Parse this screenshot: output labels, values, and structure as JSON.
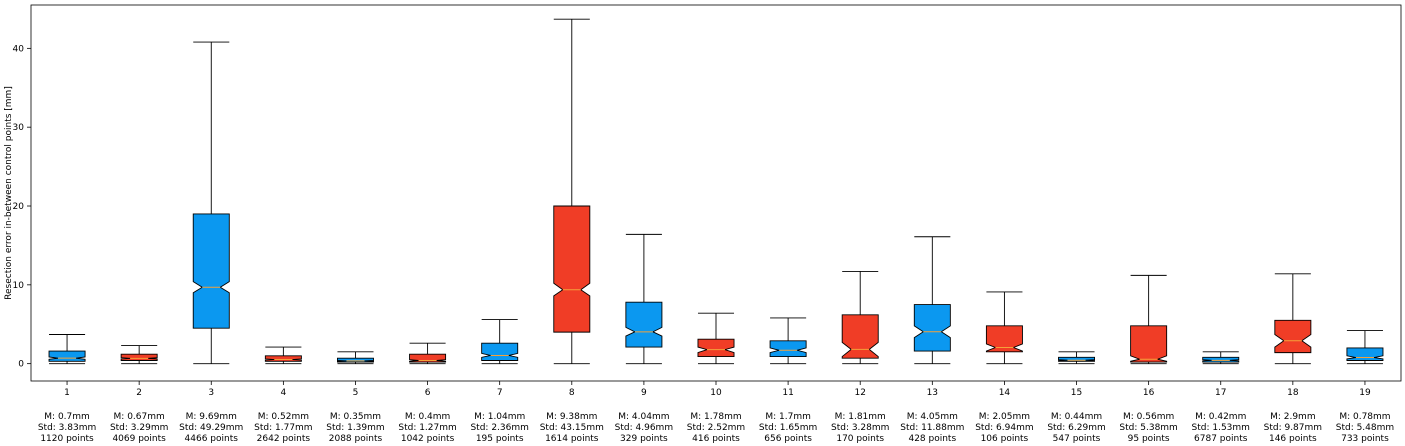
{
  "chart_data": {
    "type": "boxplot",
    "title": "",
    "xlabel": "",
    "ylabel": "Resection error in-between control points [mm]",
    "ylim": [
      -2.2,
      45.5
    ],
    "yticks": [
      0,
      10,
      20,
      30,
      40
    ],
    "grid": false,
    "colors": {
      "blue": "#0b98f0",
      "red": "#f03d26",
      "median": "#f4a13a"
    },
    "boxes": [
      {
        "label": "1",
        "color": "blue",
        "whisker_low": 0.0,
        "q1": 0.3,
        "median": 0.7,
        "q3": 1.6,
        "whisker_high": 3.7,
        "notch_low": 0.55,
        "notch_high": 0.85,
        "stat_mean": "M: 0.7mm",
        "stat_std": "Std: 3.83mm",
        "stat_points": "1120 points"
      },
      {
        "label": "2",
        "color": "red",
        "whisker_low": 0.0,
        "q1": 0.4,
        "median": 0.67,
        "q3": 1.2,
        "whisker_high": 2.3,
        "notch_low": 0.6,
        "notch_high": 0.75,
        "stat_mean": "M: 0.67mm",
        "stat_std": "Std: 3.29mm",
        "stat_points": "4069 points"
      },
      {
        "label": "3",
        "color": "blue",
        "whisker_low": 0.0,
        "q1": 4.5,
        "median": 9.69,
        "q3": 19.0,
        "whisker_high": 40.8,
        "notch_low": 9.0,
        "notch_high": 10.4,
        "stat_mean": "M: 9.69mm",
        "stat_std": "Std: 49.29mm",
        "stat_points": "4466 points"
      },
      {
        "label": "4",
        "color": "red",
        "whisker_low": 0.0,
        "q1": 0.3,
        "median": 0.52,
        "q3": 1.0,
        "whisker_high": 2.1,
        "notch_low": 0.45,
        "notch_high": 0.6,
        "stat_mean": "M: 0.52mm",
        "stat_std": "Std: 1.77mm",
        "stat_points": "2642 points"
      },
      {
        "label": "5",
        "color": "blue",
        "whisker_low": 0.0,
        "q1": 0.2,
        "median": 0.35,
        "q3": 0.7,
        "whisker_high": 1.5,
        "notch_low": 0.3,
        "notch_high": 0.4,
        "stat_mean": "M: 0.35mm",
        "stat_std": "Std: 1.39mm",
        "stat_points": "2088 points"
      },
      {
        "label": "6",
        "color": "red",
        "whisker_low": 0.0,
        "q1": 0.2,
        "median": 0.4,
        "q3": 1.2,
        "whisker_high": 2.6,
        "notch_low": 0.3,
        "notch_high": 0.5,
        "stat_mean": "M: 0.4mm",
        "stat_std": "Std: 1.27mm",
        "stat_points": "1042 points"
      },
      {
        "label": "7",
        "color": "blue",
        "whisker_low": 0.0,
        "q1": 0.4,
        "median": 1.04,
        "q3": 2.6,
        "whisker_high": 5.6,
        "notch_low": 0.8,
        "notch_high": 1.3,
        "stat_mean": "M: 1.04mm",
        "stat_std": "Std: 2.36mm",
        "stat_points": "195 points"
      },
      {
        "label": "8",
        "color": "red",
        "whisker_low": 0.0,
        "q1": 4.0,
        "median": 9.38,
        "q3": 20.0,
        "whisker_high": 43.7,
        "notch_low": 8.6,
        "notch_high": 10.2,
        "stat_mean": "M: 9.38mm",
        "stat_std": "Std: 43.15mm",
        "stat_points": "1614 points"
      },
      {
        "label": "9",
        "color": "blue",
        "whisker_low": 0.0,
        "q1": 2.1,
        "median": 4.04,
        "q3": 7.8,
        "whisker_high": 16.4,
        "notch_low": 3.5,
        "notch_high": 4.6,
        "stat_mean": "M: 4.04mm",
        "stat_std": "Std: 4.96mm",
        "stat_points": "329 points"
      },
      {
        "label": "10",
        "color": "red",
        "whisker_low": 0.0,
        "q1": 0.9,
        "median": 1.78,
        "q3": 3.1,
        "whisker_high": 6.4,
        "notch_low": 1.4,
        "notch_high": 2.1,
        "stat_mean": "M: 1.78mm",
        "stat_std": "Std: 2.52mm",
        "stat_points": "416 points"
      },
      {
        "label": "11",
        "color": "blue",
        "whisker_low": 0.0,
        "q1": 0.9,
        "median": 1.7,
        "q3": 2.9,
        "whisker_high": 5.8,
        "notch_low": 1.4,
        "notch_high": 2.0,
        "stat_mean": "M: 1.7mm",
        "stat_std": "Std: 1.65mm",
        "stat_points": "656 points"
      },
      {
        "label": "12",
        "color": "red",
        "whisker_low": 0.0,
        "q1": 0.7,
        "median": 1.81,
        "q3": 6.2,
        "whisker_high": 11.7,
        "notch_low": 0.9,
        "notch_high": 2.7,
        "stat_mean": "M: 1.81mm",
        "stat_std": "Std: 3.28mm",
        "stat_points": "170 points"
      },
      {
        "label": "13",
        "color": "blue",
        "whisker_low": 0.0,
        "q1": 1.6,
        "median": 4.05,
        "q3": 7.5,
        "whisker_high": 16.1,
        "notch_low": 3.3,
        "notch_high": 4.8,
        "stat_mean": "M: 4.05mm",
        "stat_std": "Std: 11.88mm",
        "stat_points": "428 points"
      },
      {
        "label": "14",
        "color": "red",
        "whisker_low": 0.0,
        "q1": 1.5,
        "median": 2.05,
        "q3": 4.8,
        "whisker_high": 9.1,
        "notch_low": 1.6,
        "notch_high": 2.5,
        "stat_mean": "M: 2.05mm",
        "stat_std": "Std: 6.94mm",
        "stat_points": "106 points"
      },
      {
        "label": "15",
        "color": "blue",
        "whisker_low": 0.0,
        "q1": 0.3,
        "median": 0.44,
        "q3": 0.8,
        "whisker_high": 1.5,
        "notch_low": 0.38,
        "notch_high": 0.5,
        "stat_mean": "M: 0.44mm",
        "stat_std": "Std: 6.29mm",
        "stat_points": "547 points"
      },
      {
        "label": "16",
        "color": "red",
        "whisker_low": 0.0,
        "q1": 0.2,
        "median": 0.56,
        "q3": 4.8,
        "whisker_high": 11.2,
        "notch_low": 0.3,
        "notch_high": 1.0,
        "stat_mean": "M: 0.56mm",
        "stat_std": "Std: 5.38mm",
        "stat_points": "95 points"
      },
      {
        "label": "17",
        "color": "blue",
        "whisker_low": 0.0,
        "q1": 0.2,
        "median": 0.42,
        "q3": 0.8,
        "whisker_high": 1.5,
        "notch_low": 0.35,
        "notch_high": 0.5,
        "stat_mean": "M: 0.42mm",
        "stat_std": "Std: 1.53mm",
        "stat_points": "6787 points"
      },
      {
        "label": "18",
        "color": "red",
        "whisker_low": 0.0,
        "q1": 1.4,
        "median": 2.9,
        "q3": 5.5,
        "whisker_high": 11.4,
        "notch_low": 2.1,
        "notch_high": 3.7,
        "stat_mean": "M: 2.9mm",
        "stat_std": "Std: 9.87mm",
        "stat_points": "146 points"
      },
      {
        "label": "19",
        "color": "blue",
        "whisker_low": 0.0,
        "q1": 0.4,
        "median": 0.78,
        "q3": 2.0,
        "whisker_high": 4.2,
        "notch_low": 0.6,
        "notch_high": 1.0,
        "stat_mean": "M: 0.78mm",
        "stat_std": "Std: 5.48mm",
        "stat_points": "733 points"
      }
    ]
  }
}
